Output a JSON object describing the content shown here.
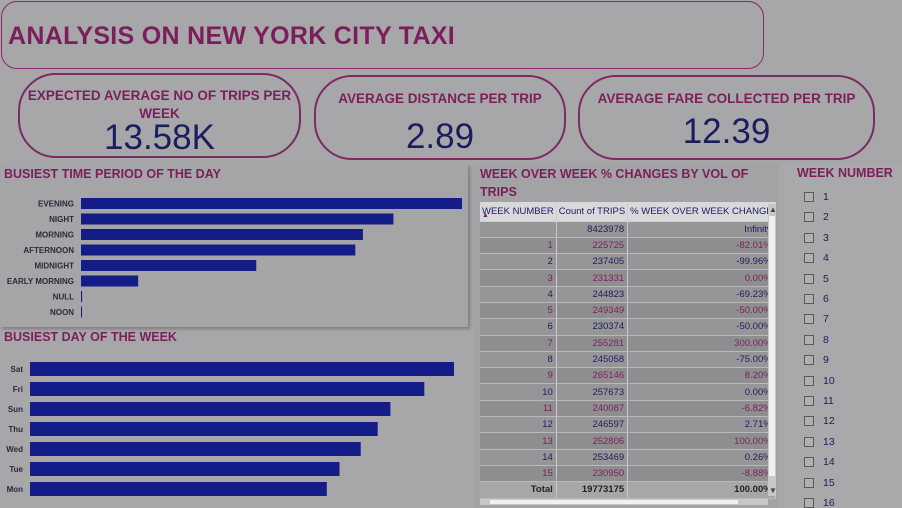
{
  "title": "ANALYSIS ON NEW YORK CITY TAXI",
  "cards": [
    {
      "label_line1": "EXPECTED AVERAGE NO OF TRIPS PER",
      "label_line2": "WEEK",
      "value": "13.58K"
    },
    {
      "label": "AVERAGE DISTANCE PER TRIP",
      "value": "2.89"
    },
    {
      "label": "AVERAGE FARE COLLECTED PER TRIP",
      "value": "12.39"
    }
  ],
  "time_chart": {
    "title": "BUSIEST TIME PERIOD OF THE DAY",
    "chart_data": {
      "type": "bar",
      "orientation": "horizontal",
      "categories": [
        "EVENING",
        "NIGHT",
        "MORNING",
        "AFTERNOON",
        "MIDNIGHT",
        "EARLY MORNING",
        "NULL",
        "NOON"
      ],
      "values": [
        100,
        82,
        74,
        72,
        46,
        15,
        0.3,
        0.2
      ],
      "color": "#141c88"
    }
  },
  "day_chart": {
    "title": "BUSIEST DAY OF THE WEEK",
    "chart_data": {
      "type": "bar",
      "orientation": "horizontal",
      "categories": [
        "Sat",
        "Fri",
        "Sun",
        "Thu",
        "Wed",
        "Tue",
        "Mon"
      ],
      "values": [
        100,
        93,
        85,
        82,
        78,
        73,
        70
      ],
      "color": "#141c88"
    }
  },
  "week_table": {
    "title_line1": "WEEK OVER WEEK % CHANGES BY VOL OF",
    "title_line2": "TRIPS",
    "columns": [
      "WEEK NUMBER",
      "Count of TRIPS",
      "% WEEK OVER WEEK CHANGE"
    ],
    "rows": [
      [
        "",
        "8423978",
        "Infinity"
      ],
      [
        "1",
        "225725",
        "-82.01%"
      ],
      [
        "2",
        "237405",
        "-99.96%"
      ],
      [
        "3",
        "231331",
        "0.00%"
      ],
      [
        "4",
        "244823",
        "-69.23%"
      ],
      [
        "5",
        "249349",
        "-50.00%"
      ],
      [
        "6",
        "230374",
        "-50.00%"
      ],
      [
        "7",
        "255281",
        "300.00%"
      ],
      [
        "8",
        "245058",
        "-75.00%"
      ],
      [
        "9",
        "265146",
        "8.20%"
      ],
      [
        "10",
        "257673",
        "0.00%"
      ],
      [
        "11",
        "240087",
        "-6.82%"
      ],
      [
        "12",
        "246597",
        "2.71%"
      ],
      [
        "13",
        "252806",
        "100.00%"
      ],
      [
        "14",
        "253469",
        "0.26%"
      ],
      [
        "15",
        "230950",
        "-8.88%"
      ]
    ],
    "total": [
      "Total",
      "19773175",
      "100.00%"
    ]
  },
  "slicer": {
    "title": "WEEK NUMBER",
    "items": [
      "1",
      "2",
      "3",
      "4",
      "5",
      "6",
      "7",
      "8",
      "9",
      "10",
      "11",
      "12",
      "13",
      "14",
      "15",
      "16"
    ]
  },
  "colors": {
    "accent": "#7b1f5c",
    "navy": "#1a1e5e",
    "bar": "#141c88",
    "background": "#a7a6a8"
  }
}
